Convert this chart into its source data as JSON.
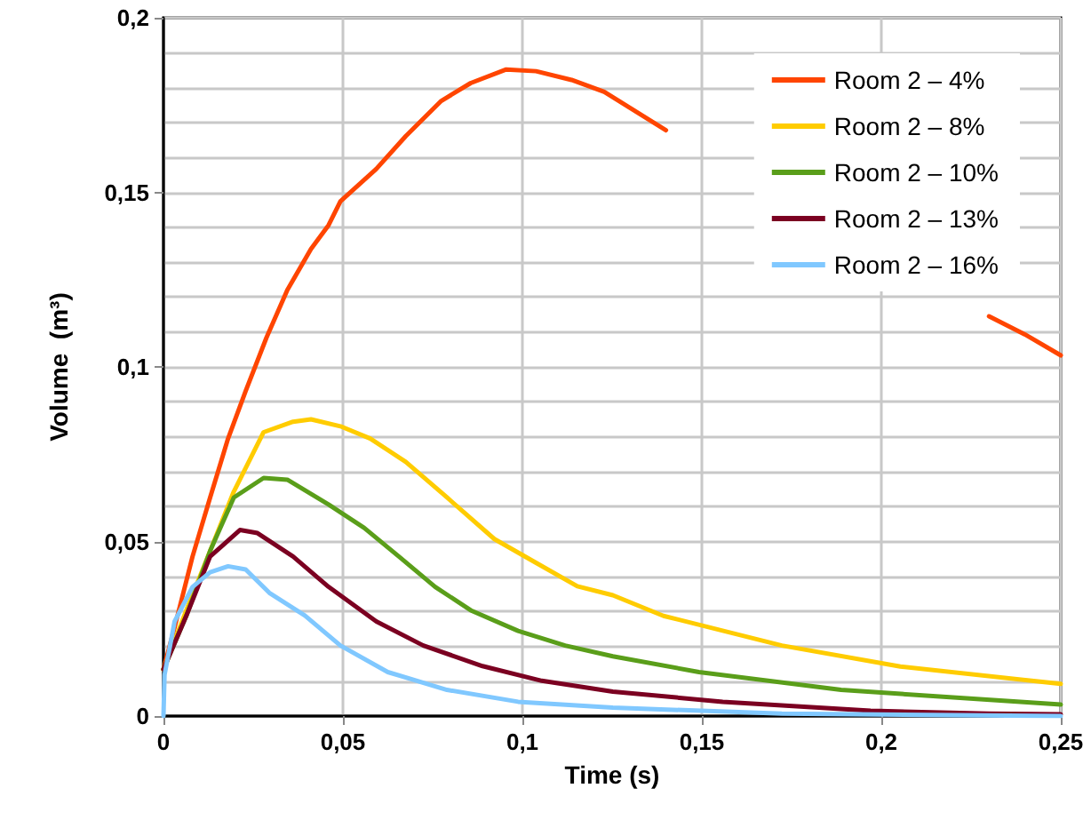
{
  "chart_data": {
    "type": "line",
    "xlabel": "Time (s)",
    "ylabel": "Volume  (m³)",
    "xlim": [
      0,
      0.25
    ],
    "ylim": [
      0,
      0.2
    ],
    "xticks": [
      0,
      {
        "value": 0.05,
        "label": "0,05"
      },
      {
        "value": 0.1,
        "label": "0,1"
      },
      {
        "value": 0.15,
        "label": "0,15"
      },
      {
        "value": 0.2,
        "label": "0,2"
      },
      {
        "value": 0.25,
        "label": "0,25"
      }
    ],
    "yticks": [
      0,
      {
        "value": 0.05,
        "label": "0,05"
      },
      {
        "value": 0.1,
        "label": "0,1"
      },
      {
        "value": 0.15,
        "label": "0,15"
      },
      {
        "value": 0.2,
        "label": "0,2"
      }
    ],
    "grid": true,
    "legend": "top right",
    "marker": "none",
    "line_style": "solid",
    "series": [
      {
        "name": "Room 2 – 4%",
        "color": "#ff4500",
        "x": [
          0,
          0.0031,
          0.0081,
          0.013,
          0.018,
          0.0229,
          0.0287,
          0.0345,
          0.0411,
          0.046,
          0.0493,
          0.0593,
          0.0675,
          0.0774,
          0.0856,
          0.0955,
          0.1038,
          0.1137,
          0.1228,
          0.14,
          0.18,
          0.23,
          0.24,
          0.25
        ],
        "values": [
          0.0134,
          0.0254,
          0.0457,
          0.0626,
          0.0795,
          0.0931,
          0.1084,
          0.122,
          0.1338,
          0.1406,
          0.1474,
          0.1567,
          0.1661,
          0.1762,
          0.1813,
          0.1852,
          0.1847,
          0.1822,
          0.1788,
          0.1678,
          null,
          0.1145,
          0.1093,
          0.1033
        ]
      },
      {
        "name": "Room 2 – 8%",
        "color": "#ffcc00",
        "x": [
          0,
          0.0064,
          0.013,
          0.0196,
          0.0279,
          0.0361,
          0.0411,
          0.0493,
          0.0576,
          0.0675,
          0.079,
          0.0922,
          0.1038,
          0.1153,
          0.1252,
          0.1393,
          0.1723,
          0.2053,
          0.25
        ],
        "values": [
          0.0134,
          0.0304,
          0.0473,
          0.0643,
          0.0813,
          0.0843,
          0.085,
          0.083,
          0.0795,
          0.0728,
          0.0626,
          0.0507,
          0.0439,
          0.0372,
          0.0346,
          0.0287,
          0.0202,
          0.0142,
          0.0092
        ]
      },
      {
        "name": "Room 2 – 10%",
        "color": "#5a9e1a",
        "x": [
          0,
          0.0064,
          0.013,
          0.0196,
          0.0279,
          0.0345,
          0.046,
          0.0559,
          0.0658,
          0.0757,
          0.0856,
          0.0988,
          0.1119,
          0.1252,
          0.1492,
          0.1888,
          0.25
        ],
        "values": [
          0.0134,
          0.0288,
          0.0473,
          0.0626,
          0.0682,
          0.0677,
          0.0606,
          0.0539,
          0.0455,
          0.037,
          0.0303,
          0.0244,
          0.0202,
          0.0171,
          0.0126,
          0.0075,
          0.0033
        ]
      },
      {
        "name": "Room 2 – 13%",
        "color": "#7b0021",
        "x": [
          0,
          0.0064,
          0.013,
          0.0213,
          0.0262,
          0.0361,
          0.046,
          0.0593,
          0.0724,
          0.0889,
          0.1054,
          0.1252,
          0.1558,
          0.197,
          0.23,
          0.25
        ],
        "values": [
          0.0134,
          0.0288,
          0.0457,
          0.0533,
          0.0524,
          0.0457,
          0.037,
          0.0271,
          0.0202,
          0.0143,
          0.0101,
          0.007,
          0.0041,
          0.0015,
          0.0007,
          0.0005
        ]
      },
      {
        "name": "Room 2 – 16%",
        "color": "#80c8ff",
        "x": [
          0,
          0.0003,
          0.0031,
          0.0081,
          0.013,
          0.018,
          0.0229,
          0.0295,
          0.0394,
          0.0493,
          0.0625,
          0.079,
          0.0988,
          0.1252,
          0.1723,
          0.25
        ],
        "values": [
          0,
          0.0118,
          0.0271,
          0.037,
          0.0412,
          0.0429,
          0.042,
          0.0353,
          0.0288,
          0.0202,
          0.0126,
          0.0075,
          0.0041,
          0.0024,
          0.0007,
          0
        ]
      }
    ]
  }
}
